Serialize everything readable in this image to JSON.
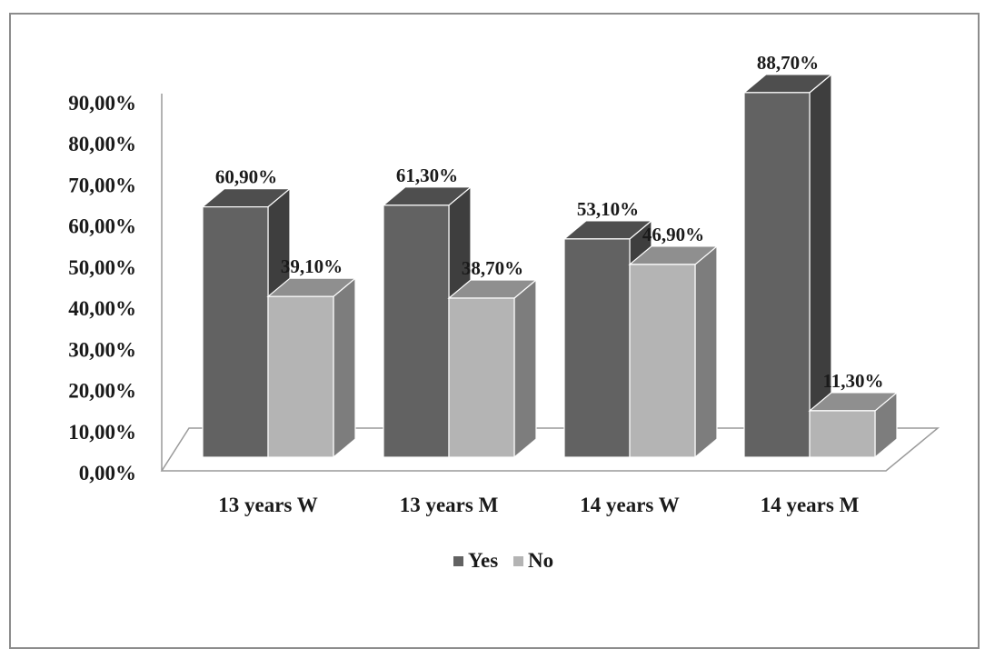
{
  "chart_data": {
    "type": "bar",
    "categories": [
      "13 years W",
      "13 years M",
      "14 years W",
      "14 years M"
    ],
    "series": [
      {
        "name": "Yes",
        "values": [
          60.9,
          61.3,
          53.1,
          88.7
        ],
        "labels": [
          "60,90%",
          "61,30%",
          "53,10%",
          "88,70%"
        ]
      },
      {
        "name": "No",
        "values": [
          39.1,
          38.7,
          46.9,
          11.3
        ],
        "labels": [
          "39,10%",
          "38,70%",
          "46,90%",
          "11,30%"
        ]
      }
    ],
    "ylim": [
      0,
      90
    ],
    "yticks": [
      "0,00%",
      "10,00%",
      "20,00%",
      "30,00%",
      "40,00%",
      "50,00%",
      "60,00%",
      "70,00%",
      "80,00%",
      "90,00%"
    ],
    "legend_position": "bottom",
    "colors": {
      "Yes": {
        "front": "#626262",
        "side": "#3e3e3e",
        "top": "#4e4e4e"
      },
      "No": {
        "front": "#b4b4b4",
        "side": "#7d7d7d",
        "top": "#8f8f8f"
      }
    },
    "three_d": true,
    "grid": false
  }
}
